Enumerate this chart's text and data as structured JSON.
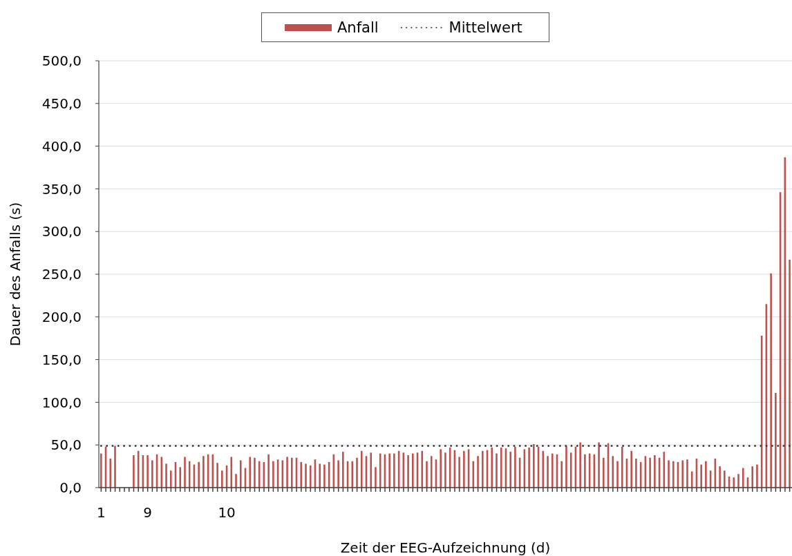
{
  "chart_data": {
    "type": "bar",
    "xlabel": "Zeit der EEG-Aufzeichnung (d)",
    "ylabel": "Dauer des Anfalls (s)",
    "categories": [
      "1",
      null,
      null,
      null,
      null,
      null,
      null,
      null,
      null,
      null,
      "9",
      null,
      null,
      null,
      null,
      null,
      null,
      null,
      null,
      null,
      null,
      null,
      null,
      null,
      null,
      null,
      null,
      "10",
      null,
      null,
      null,
      null,
      null,
      null,
      null,
      null,
      null,
      null,
      null,
      null,
      null,
      null,
      null,
      null,
      null,
      null,
      null,
      null,
      null,
      null,
      null,
      null,
      null,
      null,
      null,
      null,
      null,
      null,
      null,
      null,
      null,
      null,
      null,
      null,
      null,
      null,
      null,
      null,
      null,
      null,
      null,
      null,
      null,
      null,
      null,
      null,
      null,
      null,
      null,
      null,
      null,
      null,
      null,
      null,
      null,
      null,
      null,
      null,
      null,
      null,
      null,
      null,
      null,
      null,
      null,
      null,
      null,
      null,
      null,
      null,
      null,
      null,
      null,
      null,
      null,
      null,
      null,
      null,
      null,
      null,
      null,
      null,
      null,
      null,
      null,
      null,
      null,
      null,
      null,
      null,
      null,
      null,
      null,
      null,
      null,
      null,
      null,
      null,
      null,
      null,
      null,
      null,
      null,
      null,
      null,
      null,
      null,
      null,
      null,
      null,
      null,
      null,
      null,
      null,
      null,
      null,
      null,
      null,
      null
    ],
    "series": [
      {
        "name": "Anfall",
        "color": "#c0504d",
        "values": [
          40,
          48,
          34,
          49,
          null,
          null,
          null,
          38,
          43,
          38,
          38,
          32,
          39,
          36,
          28,
          20,
          30,
          24,
          36,
          31,
          27,
          30,
          37,
          39,
          39,
          29,
          20,
          26,
          36,
          16,
          32,
          23,
          36,
          35,
          31,
          30,
          39,
          31,
          33,
          32,
          36,
          35,
          35,
          30,
          28,
          26,
          33,
          28,
          27,
          30,
          39,
          32,
          42,
          31,
          31,
          35,
          43,
          37,
          41,
          24,
          40,
          39,
          40,
          40,
          43,
          41,
          38,
          40,
          41,
          43,
          31,
          37,
          33,
          45,
          41,
          47,
          44,
          36,
          43,
          45,
          31,
          37,
          43,
          44,
          47,
          40,
          47,
          46,
          42,
          48,
          35,
          45,
          47,
          51,
          48,
          43,
          37,
          40,
          39,
          31,
          49,
          41,
          48,
          53,
          39,
          40,
          39,
          53,
          35,
          52,
          37,
          31,
          48,
          34,
          43,
          34,
          30,
          37,
          35,
          38,
          35,
          42,
          32,
          31,
          30,
          32,
          33,
          19,
          34,
          27,
          31,
          20,
          34,
          25,
          20,
          13,
          12,
          16,
          23,
          12,
          25,
          27,
          178,
          215,
          251,
          111,
          346,
          387,
          267
        ]
      },
      {
        "name": "Mittelwert",
        "type": "line",
        "color": "#404040",
        "line_style": "dotted",
        "marker": "none",
        "values": [
          49,
          49,
          49,
          49,
          49,
          49,
          49,
          49,
          49,
          49,
          49,
          49,
          49,
          49,
          49,
          49,
          49,
          49,
          49,
          49,
          49,
          49,
          49,
          49,
          49,
          49,
          49,
          49,
          49,
          49,
          49,
          49,
          49,
          49,
          49,
          49,
          49,
          49,
          49,
          49,
          49,
          49,
          49,
          49,
          49,
          49,
          49,
          49,
          49,
          49,
          49,
          49,
          49,
          49,
          49,
          49,
          49,
          49,
          49,
          49,
          49,
          49,
          49,
          49,
          49,
          49,
          49,
          49,
          49,
          49,
          49,
          49,
          49,
          49,
          49,
          49,
          49,
          49,
          49,
          49,
          49,
          49,
          49,
          49,
          49,
          49,
          49,
          49,
          49,
          49,
          49,
          49,
          49,
          49,
          49,
          49,
          49,
          49,
          49,
          49,
          49,
          49,
          49,
          49,
          49,
          49,
          49,
          49,
          49,
          49,
          49,
          49,
          49,
          49,
          49,
          49,
          49,
          49,
          49,
          49,
          49,
          49,
          49,
          49,
          49,
          49,
          49,
          49,
          49,
          49,
          49,
          49,
          49,
          49,
          49,
          49,
          49,
          49,
          49,
          49,
          49,
          49,
          49,
          49,
          49,
          49,
          49,
          49,
          49
        ]
      }
    ],
    "ylim": [
      0,
      500
    ],
    "yticks": [
      {
        "value": 0,
        "label": "0,0"
      },
      {
        "value": 50,
        "label": "50,0"
      },
      {
        "value": 100,
        "label": "100,0"
      },
      {
        "value": 150,
        "label": "150,0"
      },
      {
        "value": 200,
        "label": "200,0"
      },
      {
        "value": 250,
        "label": "250,0"
      },
      {
        "value": 300,
        "label": "300,0"
      },
      {
        "value": 350,
        "label": "350,0"
      },
      {
        "value": 400,
        "label": "400,0"
      },
      {
        "value": 450,
        "label": "450,0"
      },
      {
        "value": 500,
        "label": "500,0"
      }
    ],
    "grid": "y",
    "legend": "top"
  }
}
